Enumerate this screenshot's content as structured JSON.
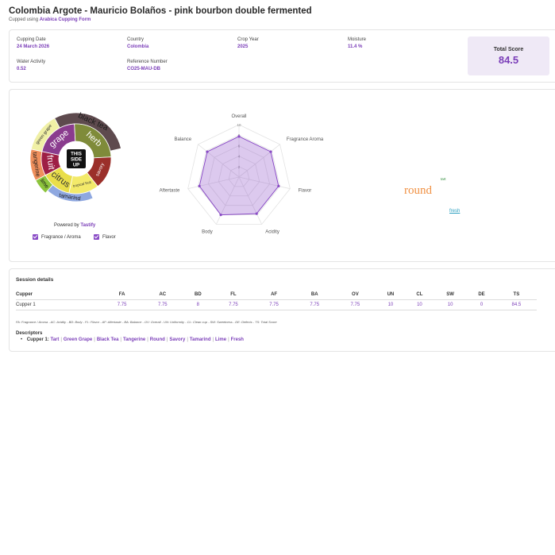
{
  "header": {
    "title": "Colombia Argote - Mauricio Bolaños - pink bourbon double fermented",
    "cupped_prefix": "Cupped using",
    "form_name": "Arabica Cupping Form"
  },
  "info": {
    "cupping_date_label": "Cupping Date",
    "cupping_date": "24 March 2026",
    "country_label": "Country",
    "country": "Colombia",
    "crop_year_label": "Crop Year",
    "crop_year": "2025",
    "moisture_label": "Moisture",
    "moisture": "11.4 %",
    "water_activity_label": "Water Activity",
    "water_activity": "0.52",
    "reference_label": "Reference Number",
    "reference": "CO25-MAU-DB",
    "total_score_label": "Total Score",
    "total_score": "84.5"
  },
  "flavor_wheel": {
    "center_logo": [
      "THIS",
      "SIDE",
      "UP"
    ],
    "inner": [
      {
        "label": "grape",
        "color": "#8a3c8e"
      },
      {
        "label": "herb",
        "color": "#7f8b3a"
      },
      {
        "label": "savory",
        "color": "#9b2f2a"
      },
      {
        "label": "tropical fruit",
        "color": "#f3ea6a"
      },
      {
        "label": "citrus",
        "color": "#e9de4a"
      },
      {
        "label": "fruit",
        "color": "#9e1f45"
      }
    ],
    "outer": [
      {
        "label": "green grape",
        "color": "#f0f0a6"
      },
      {
        "label": "black tea",
        "color": "#5e4a4e"
      },
      {
        "label": "tamarind",
        "color": "#8fa8e0"
      },
      {
        "label": "lime",
        "color": "#8cc43c"
      },
      {
        "label": "tangerine",
        "color": "#ef8f5c"
      }
    ],
    "powered_prefix": "Powered by",
    "powered_brand": "Tastify",
    "legend": [
      "Fragrance / Aroma",
      "Flavor"
    ],
    "colors": {
      "accent": "#7a3db8"
    }
  },
  "chart_data": {
    "type": "radar",
    "axes": [
      "Overall",
      "Fragrance Aroma",
      "Flavor",
      "Acidity",
      "Body",
      "Aftertaste",
      "Balance"
    ],
    "ticks": [
      2,
      4,
      6,
      8,
      10
    ],
    "rmax": 10,
    "series": [
      {
        "values": [
          7.75,
          7.75,
          7.75,
          7.75,
          8,
          7.75,
          7.75
        ],
        "color": "#8a4cc6"
      }
    ]
  },
  "word_cloud": {
    "words": [
      {
        "text": "round",
        "color": "#f09042"
      },
      {
        "text": "tart",
        "color": "#2e8b3a"
      },
      {
        "text": "fresh",
        "color": "#2a9fbf"
      }
    ]
  },
  "session": {
    "title": "Session details",
    "headers": [
      "Cupper",
      "FA",
      "AC",
      "BD",
      "FL",
      "AF",
      "BA",
      "OV",
      "UN",
      "CL",
      "SW",
      "DE",
      "TS"
    ],
    "rows": [
      [
        "Cupper 1",
        "7.75",
        "7.75",
        "8",
        "7.75",
        "7.75",
        "7.75",
        "7.75",
        "10",
        "10",
        "10",
        "0",
        "84.5"
      ]
    ],
    "abbreviations": "FA: Fragrance / Aroma - AC: Acidity - BD: Body - FL: Flavor - AF: Aftertaste - BA: Balance - OV: Overall - UN: Uniformity - CL: Clean cup - SW: Sweetness - DE: Defects - TS: Total Score",
    "descriptors_title": "Descriptors",
    "descriptors": {
      "cupper": "Cupper 1:",
      "items": [
        "Tart",
        "Green Grape",
        "Black Tea",
        "Tangerine",
        "Round",
        "Savory",
        "Tamarind",
        "Lime",
        "Fresh"
      ]
    }
  }
}
